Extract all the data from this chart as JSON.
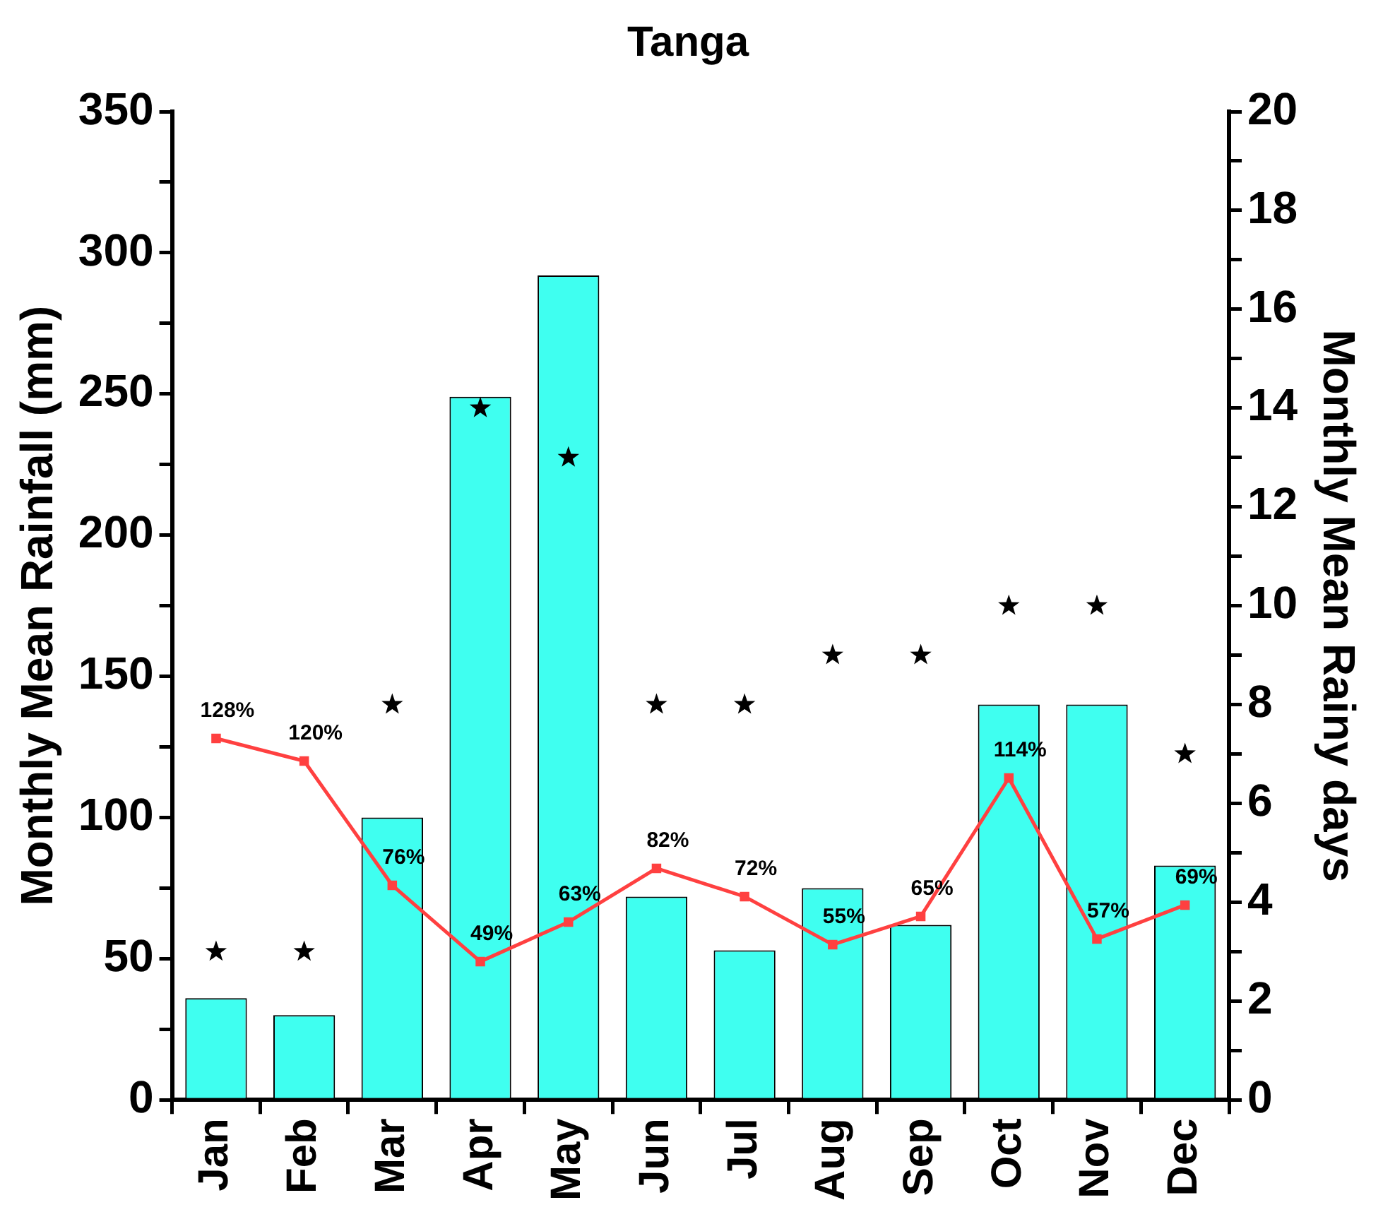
{
  "chart_data": {
    "type": "bar",
    "title": "Tanga",
    "ylabel": "Monthly Mean Rainfall (mm)",
    "y2label": "Monthly Mean Rainy days",
    "categories": [
      "Jan",
      "Feb",
      "Mar",
      "Apr",
      "May",
      "Jun",
      "Jul",
      "Aug",
      "Sep",
      "Oct",
      "Nov",
      "Dec"
    ],
    "series": [
      {
        "color": "#3ffff0",
        "values": [
          36,
          30,
          100,
          249,
          292,
          72,
          53,
          75,
          62,
          140,
          140,
          83
        ]
      },
      {
        "type": "line",
        "color": "#ff4040",
        "marker": "square",
        "values": [
          128,
          120,
          76,
          49,
          63,
          82,
          72,
          55,
          65,
          114,
          57,
          69
        ],
        "value_labels": [
          "128%",
          "120%",
          "76%",
          "49%",
          "63%",
          "82%",
          "72%",
          "55%",
          "65%",
          "114%",
          "57%",
          "69%"
        ]
      },
      {
        "type": "scatter",
        "axis": "y2",
        "color": "#000000",
        "marker": "star",
        "values": [
          3,
          3,
          8,
          14,
          13,
          8,
          8,
          9,
          9,
          10,
          10,
          7
        ]
      }
    ],
    "ylim": [
      0,
      350
    ],
    "yticks": [
      0,
      {
        "value": 25,
        "label": null
      },
      50,
      {
        "value": 75,
        "label": null
      },
      100,
      {
        "value": 125,
        "label": null
      },
      150,
      {
        "value": 175,
        "label": null
      },
      200,
      {
        "value": 225,
        "label": null
      },
      250,
      {
        "value": 275,
        "label": null
      },
      300,
      {
        "value": 325,
        "label": null
      },
      350
    ],
    "y2lim": [
      0,
      20
    ],
    "y2ticks": [
      0,
      {
        "value": 1,
        "label": null
      },
      2,
      {
        "value": 3,
        "label": null
      },
      4,
      {
        "value": 5,
        "label": null
      },
      6,
      {
        "value": 7,
        "label": null
      },
      8,
      {
        "value": 9,
        "label": null
      },
      10,
      {
        "value": 11,
        "label": null
      },
      12,
      {
        "value": 13,
        "label": null
      },
      14,
      {
        "value": 15,
        "label": null
      },
      16,
      {
        "value": 17,
        "label": null
      },
      18,
      {
        "value": 19,
        "label": null
      },
      20
    ],
    "grid": false,
    "legend": false
  }
}
